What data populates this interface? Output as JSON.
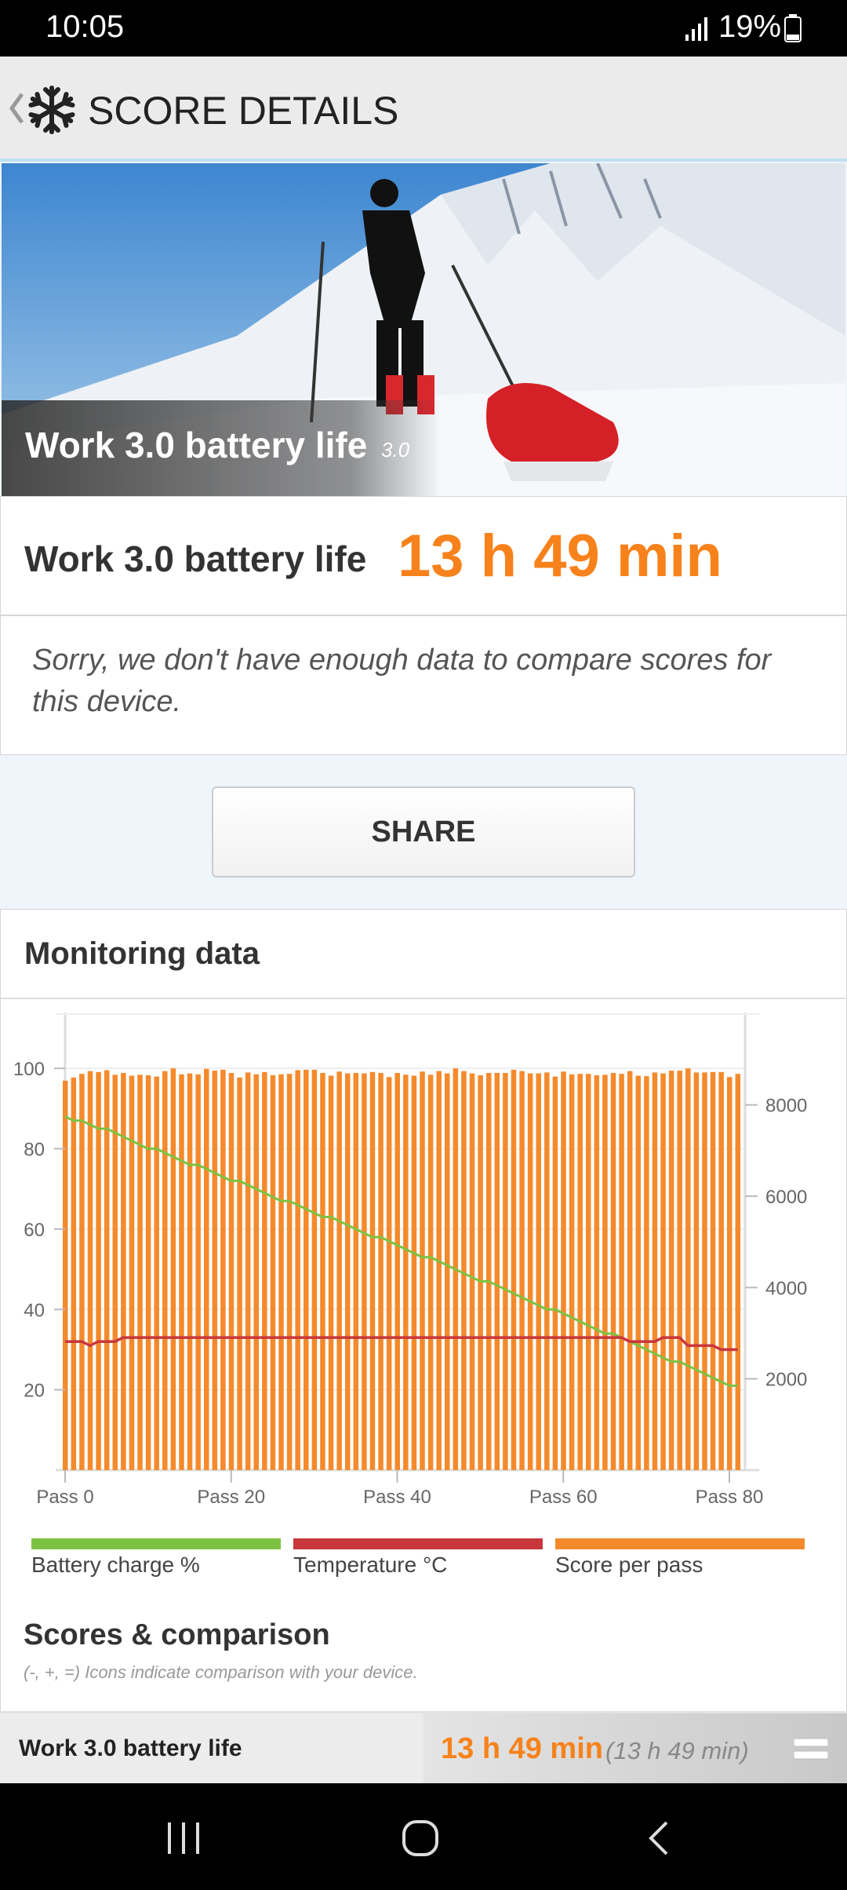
{
  "status": {
    "time": "10:05",
    "battery": "19%"
  },
  "header": {
    "title": "SCORE DETAILS",
    "back_icon": "chevron-left",
    "logo_icon": "snowflake"
  },
  "hero": {
    "caption": "Work 3.0 battery life",
    "version": "3.0"
  },
  "score": {
    "label": "Work 3.0 battery life",
    "value": "13 h 49 min"
  },
  "notice": "Sorry, we don't have enough data to compare scores for this device.",
  "share_label": "SHARE",
  "monitoring": {
    "title": "Monitoring data"
  },
  "chart_data": {
    "type": "bar+line",
    "x_tick_labels": [
      "Pass 0",
      "Pass 20",
      "Pass 40",
      "Pass 60",
      "Pass 80"
    ],
    "x_ticks": [
      0,
      20,
      40,
      60,
      80
    ],
    "left_axis": {
      "ylim": [
        0,
        110
      ],
      "ticks": [
        20,
        40,
        60,
        80,
        100
      ]
    },
    "right_axis": {
      "ylim": [
        0,
        9680
      ],
      "ticks": [
        2000,
        4000,
        6000,
        8000
      ]
    },
    "grid": true,
    "legend_placement": "bottom",
    "series": [
      {
        "name": "Battery charge %",
        "type": "line",
        "axis": "left",
        "color": "#7cc242",
        "values": [
          88,
          87,
          87,
          86,
          85,
          85,
          84,
          83,
          82,
          81,
          80,
          80,
          79,
          78,
          77,
          76,
          76,
          75,
          74,
          73,
          72,
          72,
          71,
          70,
          69,
          68,
          67,
          67,
          66,
          65,
          64,
          63,
          63,
          62,
          61,
          60,
          59,
          58,
          58,
          57,
          56,
          55,
          54,
          53,
          53,
          52,
          51,
          50,
          49,
          48,
          47,
          47,
          46,
          45,
          44,
          43,
          42,
          41,
          40,
          40,
          39,
          38,
          37,
          36,
          35,
          34,
          34,
          33,
          32,
          31,
          30,
          29,
          28,
          27,
          27,
          26,
          25,
          24,
          23,
          22,
          21,
          21
        ]
      },
      {
        "name": "Temperature °C",
        "type": "line",
        "axis": "left",
        "color": "#c8373c",
        "values": [
          32,
          32,
          32,
          31,
          32,
          32,
          32,
          33,
          33,
          33,
          33,
          33,
          33,
          33,
          33,
          33,
          33,
          33,
          33,
          33,
          33,
          33,
          33,
          33,
          33,
          33,
          33,
          33,
          33,
          33,
          33,
          33,
          33,
          33,
          33,
          33,
          33,
          33,
          33,
          33,
          33,
          33,
          33,
          33,
          33,
          33,
          33,
          33,
          33,
          33,
          33,
          33,
          33,
          33,
          33,
          33,
          33,
          33,
          33,
          33,
          33,
          33,
          33,
          33,
          33,
          33,
          33,
          33,
          32,
          32,
          32,
          32,
          33,
          33,
          33,
          31,
          31,
          31,
          31,
          30,
          30,
          30
        ]
      },
      {
        "name": "Score per pass",
        "type": "bar",
        "axis": "right",
        "color": "#f48a2c",
        "values": [
          8530,
          8600,
          8680,
          8740,
          8720,
          8760,
          8660,
          8700,
          8640,
          8660,
          8650,
          8620,
          8740,
          8800,
          8670,
          8690,
          8670,
          8790,
          8750,
          8770,
          8700,
          8600,
          8710,
          8670,
          8720,
          8650,
          8670,
          8680,
          8760,
          8770,
          8770,
          8700,
          8640,
          8730,
          8690,
          8700,
          8690,
          8720,
          8700,
          8610,
          8700,
          8660,
          8640,
          8730,
          8660,
          8740,
          8690,
          8800,
          8740,
          8690,
          8650,
          8700,
          8700,
          8700,
          8770,
          8740,
          8690,
          8690,
          8710,
          8620,
          8730,
          8670,
          8680,
          8680,
          8650,
          8660,
          8700,
          8680,
          8740,
          8640,
          8630,
          8710,
          8690,
          8750,
          8750,
          8800,
          8710,
          8710,
          8720,
          8720,
          8610,
          8680
        ]
      }
    ]
  },
  "legend": [
    {
      "label": "Battery charge %",
      "color": "#7cc242"
    },
    {
      "label": "Temperature °C",
      "color": "#c8373c"
    },
    {
      "label": "Score per pass",
      "color": "#f48a2c"
    }
  ],
  "scores": {
    "title": "Scores & comparison",
    "subtitle": "(-, +, =) Icons indicate comparison with your device.",
    "row": {
      "label": "Work 3.0 battery life",
      "value": "13 h 49 min",
      "compare": "(13 h 49 min)",
      "icon": "equals"
    }
  }
}
